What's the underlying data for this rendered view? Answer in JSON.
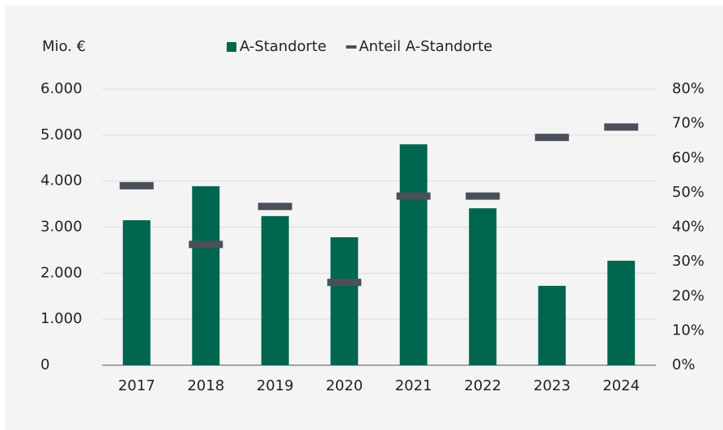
{
  "chart_data": {
    "type": "bar",
    "ylabel": "Mio. €",
    "categories": [
      "2017",
      "2018",
      "2019",
      "2020",
      "2021",
      "2022",
      "2023",
      "2024"
    ],
    "series": [
      {
        "name": "A-Standorte",
        "color": "#00664f",
        "type": "bar",
        "values": [
          3150,
          3890,
          3240,
          2780,
          4800,
          3410,
          1725,
          2270
        ]
      },
      {
        "name": "Anteil A-Standorte",
        "color": "#4a5059",
        "type": "marker",
        "axis": "y2",
        "values": [
          52,
          35,
          46,
          24,
          49,
          49,
          66,
          69
        ]
      }
    ],
    "ylim": [
      0,
      6000
    ],
    "yticks": [
      0,
      {
        "value": 1000,
        "label": "1.000"
      },
      {
        "value": 2000,
        "label": "2.000"
      },
      {
        "value": 3000,
        "label": "3.000"
      },
      {
        "value": 4000,
        "label": "4.000"
      },
      {
        "value": 5000,
        "label": "5.000"
      },
      {
        "value": 6000,
        "label": "6.000"
      }
    ],
    "y2lim": [
      0,
      80
    ],
    "y2ticks": [
      {
        "value": 0,
        "label": "0%"
      },
      {
        "value": 10,
        "label": "10%"
      },
      {
        "value": 20,
        "label": "20%"
      },
      {
        "value": 30,
        "label": "30%"
      },
      {
        "value": 40,
        "label": "40%"
      },
      {
        "value": 50,
        "label": "50%"
      },
      {
        "value": 60,
        "label": "60%"
      },
      {
        "value": 70,
        "label": "70%"
      },
      {
        "value": 80,
        "label": "80%"
      }
    ],
    "grid": true
  }
}
